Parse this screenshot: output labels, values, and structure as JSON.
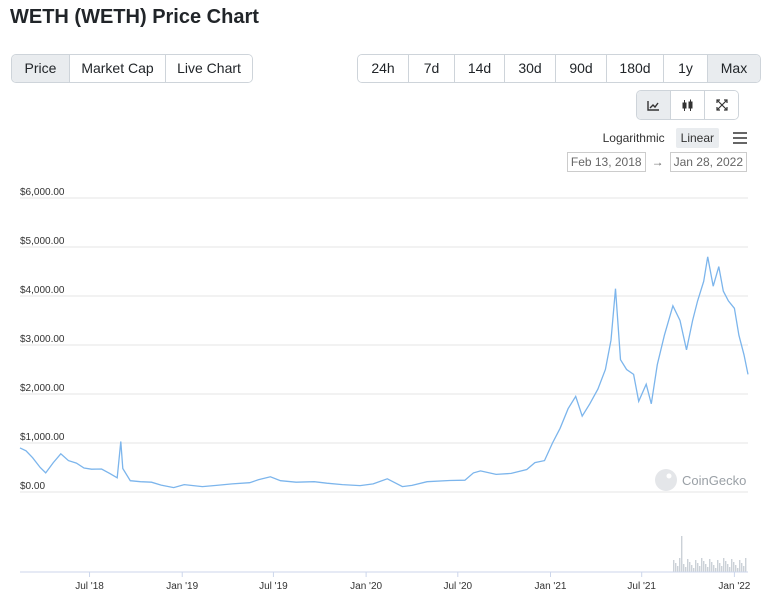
{
  "page": {
    "title": "WETH (WETH) Price Chart"
  },
  "tabs": [
    {
      "label": "Price",
      "active": true
    },
    {
      "label": "Market Cap",
      "active": false
    },
    {
      "label": "Live Chart",
      "active": false
    }
  ],
  "ranges": [
    {
      "label": "24h",
      "active": false
    },
    {
      "label": "7d",
      "active": false
    },
    {
      "label": "14d",
      "active": false
    },
    {
      "label": "30d",
      "active": false
    },
    {
      "label": "90d",
      "active": false
    },
    {
      "label": "180d",
      "active": false
    },
    {
      "label": "1y",
      "active": false
    },
    {
      "label": "Max",
      "active": true
    }
  ],
  "chart_types": [
    {
      "icon": "line-chart-icon",
      "active": true
    },
    {
      "icon": "candlestick-icon",
      "active": false
    },
    {
      "icon": "fullscreen-icon",
      "active": false
    }
  ],
  "scale": {
    "log_label": "Logarithmic",
    "linear_label": "Linear",
    "active": "linear"
  },
  "date_range": {
    "from": "Feb 13, 2018",
    "arrow": "→",
    "to": "Jan 28, 2022"
  },
  "watermark": "CoinGecko",
  "colors": {
    "line": "#7cb5ec",
    "volume": "#cbd1d7",
    "grid": "#e6e6e6",
    "active_btn": "#e9ecef"
  },
  "chart_data": {
    "type": "line",
    "title": "",
    "xlabel": "",
    "ylabel": "",
    "x_range": [
      "2018-02-13",
      "2022-01-28"
    ],
    "ylim": [
      0,
      6000
    ],
    "grid": true,
    "y_ticks": [
      "$0.00",
      "$1,000.00",
      "$2,000.00",
      "$3,000.00",
      "$4,000.00",
      "$5,000.00",
      "$6,000.00"
    ],
    "x_ticks": [
      {
        "label": "Jul '18",
        "date": "2018-07-01"
      },
      {
        "label": "Jan '19",
        "date": "2019-01-01"
      },
      {
        "label": "Jul '19",
        "date": "2019-07-01"
      },
      {
        "label": "Jan '20",
        "date": "2020-01-01"
      },
      {
        "label": "Jul '20",
        "date": "2020-07-01"
      },
      {
        "label": "Jan '21",
        "date": "2021-01-01"
      },
      {
        "label": "Jul '21",
        "date": "2021-07-01"
      },
      {
        "label": "Jan '22",
        "date": "2022-01-01"
      }
    ],
    "series": [
      {
        "values": [
          [
            "2018-02-13",
            900
          ],
          [
            "2018-02-25",
            840
          ],
          [
            "2018-03-10",
            700
          ],
          [
            "2018-03-25",
            500
          ],
          [
            "2018-04-05",
            390
          ],
          [
            "2018-04-20",
            600
          ],
          [
            "2018-05-05",
            780
          ],
          [
            "2018-05-20",
            640
          ],
          [
            "2018-06-05",
            590
          ],
          [
            "2018-06-20",
            490
          ],
          [
            "2018-07-05",
            465
          ],
          [
            "2018-07-25",
            470
          ],
          [
            "2018-08-10",
            380
          ],
          [
            "2018-08-25",
            290
          ],
          [
            "2018-09-01",
            1030
          ],
          [
            "2018-09-05",
            480
          ],
          [
            "2018-09-20",
            230
          ],
          [
            "2018-10-10",
            210
          ],
          [
            "2018-11-01",
            200
          ],
          [
            "2018-11-20",
            140
          ],
          [
            "2018-12-15",
            90
          ],
          [
            "2019-01-05",
            150
          ],
          [
            "2019-02-10",
            110
          ],
          [
            "2019-03-10",
            135
          ],
          [
            "2019-04-10",
            165
          ],
          [
            "2019-05-15",
            190
          ],
          [
            "2019-06-01",
            250
          ],
          [
            "2019-06-25",
            310
          ],
          [
            "2019-07-15",
            230
          ],
          [
            "2019-08-15",
            200
          ],
          [
            "2019-09-20",
            210
          ],
          [
            "2019-10-15",
            180
          ],
          [
            "2019-11-15",
            150
          ],
          [
            "2019-12-20",
            130
          ],
          [
            "2020-01-15",
            165
          ],
          [
            "2020-02-12",
            270
          ],
          [
            "2020-03-13",
            110
          ],
          [
            "2020-04-01",
            135
          ],
          [
            "2020-05-01",
            210
          ],
          [
            "2020-06-15",
            235
          ],
          [
            "2020-07-15",
            240
          ],
          [
            "2020-08-01",
            390
          ],
          [
            "2020-08-15",
            430
          ],
          [
            "2020-09-15",
            360
          ],
          [
            "2020-10-15",
            380
          ],
          [
            "2020-11-15",
            460
          ],
          [
            "2020-12-01",
            600
          ],
          [
            "2020-12-20",
            640
          ],
          [
            "2021-01-05",
            1000
          ],
          [
            "2021-01-20",
            1300
          ],
          [
            "2021-02-05",
            1700
          ],
          [
            "2021-02-20",
            1950
          ],
          [
            "2021-03-05",
            1550
          ],
          [
            "2021-03-20",
            1800
          ],
          [
            "2021-04-05",
            2100
          ],
          [
            "2021-04-20",
            2500
          ],
          [
            "2021-05-01",
            3100
          ],
          [
            "2021-05-10",
            4150
          ],
          [
            "2021-05-20",
            2700
          ],
          [
            "2021-06-01",
            2500
          ],
          [
            "2021-06-15",
            2400
          ],
          [
            "2021-06-25",
            1850
          ],
          [
            "2021-07-10",
            2200
          ],
          [
            "2021-07-20",
            1800
          ],
          [
            "2021-08-01",
            2600
          ],
          [
            "2021-08-15",
            3200
          ],
          [
            "2021-09-01",
            3800
          ],
          [
            "2021-09-15",
            3500
          ],
          [
            "2021-09-28",
            2900
          ],
          [
            "2021-10-10",
            3500
          ],
          [
            "2021-10-20",
            3900
          ],
          [
            "2021-11-01",
            4300
          ],
          [
            "2021-11-09",
            4800
          ],
          [
            "2021-11-20",
            4200
          ],
          [
            "2021-12-01",
            4600
          ],
          [
            "2021-12-10",
            4100
          ],
          [
            "2021-12-20",
            3900
          ],
          [
            "2022-01-01",
            3750
          ],
          [
            "2022-01-10",
            3200
          ],
          [
            "2022-01-20",
            2800
          ],
          [
            "2022-01-28",
            2400
          ]
        ]
      }
    ]
  }
}
